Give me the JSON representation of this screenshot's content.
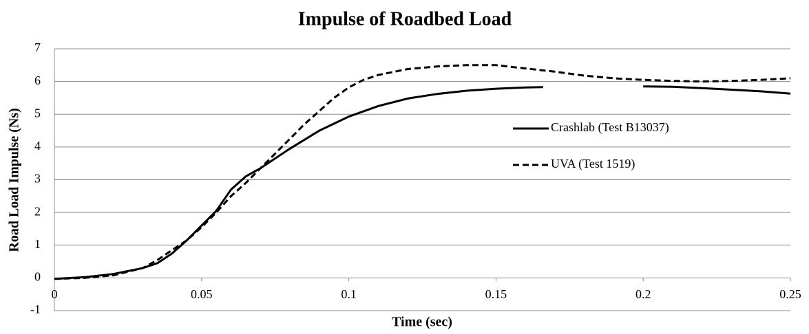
{
  "chart_data": {
    "type": "line",
    "title": "Impulse of Roadbed Load",
    "x_label": "Time (sec)",
    "y_label": "Road Load  Impulse (Ns)",
    "xlim": [
      0,
      0.25
    ],
    "xticks": [
      0,
      0.05,
      0.1,
      0.15,
      0.2,
      0.25
    ],
    "ylim": [
      -1,
      7
    ],
    "yticks": [
      -1,
      0,
      1,
      2,
      3,
      4,
      5,
      6,
      7
    ],
    "grid": true,
    "legend": "right",
    "series": [
      {
        "name": "Crashlab (Test B13037)",
        "color": "#000000",
        "style": "solid",
        "x": [
          0,
          0.01,
          0.02,
          0.03,
          0.035,
          0.04,
          0.045,
          0.05,
          0.055,
          0.06,
          0.065,
          0.07,
          0.075,
          0.08,
          0.09,
          0.1,
          0.11,
          0.12,
          0.13,
          0.14,
          0.15,
          0.16,
          0.166,
          0.18,
          0.2,
          0.21,
          0.22,
          0.23,
          0.24,
          0.25
        ],
        "values": [
          -0.03,
          0.02,
          0.12,
          0.3,
          0.45,
          0.75,
          1.15,
          1.6,
          2.05,
          2.7,
          3.1,
          3.35,
          3.65,
          3.95,
          4.5,
          4.93,
          5.25,
          5.48,
          5.62,
          5.72,
          5.78,
          5.82,
          5.83,
          null,
          5.85,
          5.84,
          5.8,
          5.75,
          5.7,
          5.63
        ]
      },
      {
        "name": "UVA (Test 1519)",
        "color": "#000000",
        "style": "dashed",
        "x": [
          0,
          0.01,
          0.02,
          0.03,
          0.035,
          0.04,
          0.045,
          0.05,
          0.055,
          0.06,
          0.065,
          0.07,
          0.075,
          0.08,
          0.085,
          0.09,
          0.095,
          0.1,
          0.105,
          0.11,
          0.12,
          0.13,
          0.14,
          0.15,
          0.16,
          0.17,
          0.18,
          0.19,
          0.2,
          0.21,
          0.22,
          0.23,
          0.24,
          0.25
        ],
        "values": [
          -0.03,
          0.0,
          0.08,
          0.3,
          0.55,
          0.85,
          1.15,
          1.55,
          2.0,
          2.5,
          2.9,
          3.35,
          3.8,
          4.25,
          4.7,
          5.1,
          5.5,
          5.82,
          6.05,
          6.2,
          6.38,
          6.46,
          6.5,
          6.5,
          6.4,
          6.3,
          6.18,
          6.1,
          6.05,
          6.02,
          6.0,
          6.02,
          6.05,
          6.1
        ]
      }
    ]
  }
}
